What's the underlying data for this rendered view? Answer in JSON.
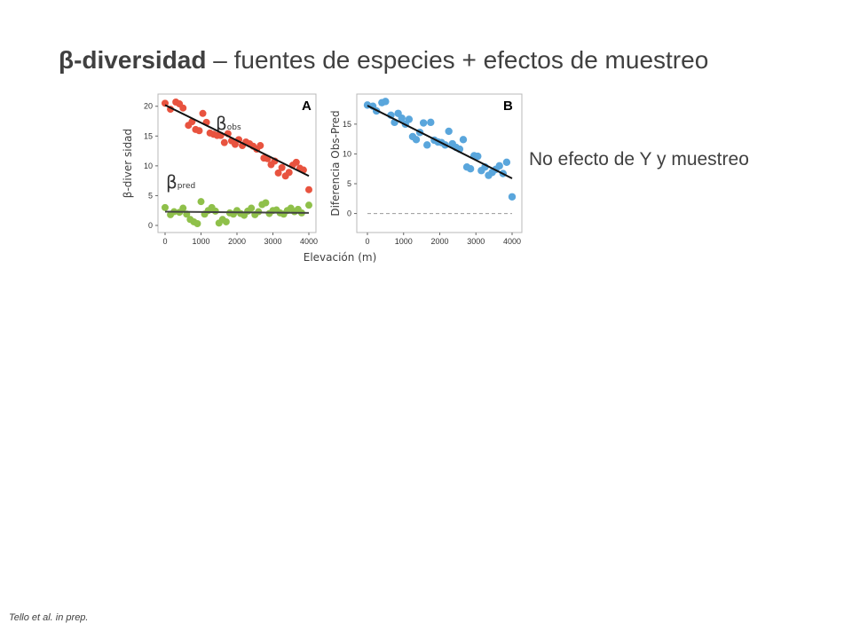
{
  "slide": {
    "title_bold": "β-diversidad",
    "title_rest": " – fuentes de especies + efectos de muestreo",
    "note": "No efecto de Y y muestreo",
    "citation": "Tello et al. in prep.",
    "shared_xlabel": "Elevación (m)"
  },
  "chart_data": [
    {
      "type": "scatter",
      "panel": "A",
      "ylabel": "β-diver sidad",
      "xlim": [
        0,
        4000
      ],
      "ylim": [
        0,
        21
      ],
      "xticks": [
        0,
        1000,
        2000,
        3000,
        4000
      ],
      "yticks": [
        0,
        5,
        10,
        15,
        20
      ],
      "grid": false,
      "series": [
        {
          "name": "β",
          "subscript": "obs",
          "color": "#e8533f",
          "x": [
            0,
            150,
            300,
            400,
            500,
            650,
            750,
            850,
            950,
            1050,
            1150,
            1250,
            1350,
            1450,
            1550,
            1650,
            1750,
            1850,
            1950,
            2050,
            2150,
            2250,
            2350,
            2450,
            2550,
            2650,
            2750,
            2850,
            2950,
            3050,
            3150,
            3250,
            3350,
            3450,
            3550,
            3650,
            3750,
            3850,
            4000
          ],
          "y": [
            20.5,
            19.5,
            20.7,
            20.4,
            19.7,
            16.8,
            17.4,
            16.1,
            15.9,
            18.8,
            17.3,
            15.5,
            15.3,
            15.1,
            15.1,
            13.9,
            15.4,
            14.2,
            13.6,
            14.4,
            13.4,
            14.0,
            13.7,
            13.3,
            12.8,
            13.4,
            11.3,
            11.2,
            10.2,
            10.8,
            8.8,
            9.7,
            8.3,
            8.9,
            10.1,
            10.6,
            9.6,
            9.3,
            6.0
          ],
          "fit": [
            20.2,
            8.3
          ]
        },
        {
          "name": "β",
          "subscript": "pred",
          "color": "#8fc04a",
          "x": [
            0,
            150,
            250,
            400,
            500,
            600,
            700,
            800,
            900,
            1000,
            1100,
            1200,
            1300,
            1400,
            1500,
            1600,
            1700,
            1800,
            1900,
            2000,
            2100,
            2200,
            2300,
            2400,
            2500,
            2600,
            2700,
            2800,
            2900,
            3000,
            3100,
            3200,
            3300,
            3400,
            3500,
            3600,
            3700,
            3800,
            4000
          ],
          "y": [
            3.0,
            1.8,
            2.3,
            2.2,
            2.9,
            1.9,
            1.0,
            0.6,
            0.3,
            4.0,
            1.9,
            2.5,
            3.0,
            2.4,
            0.4,
            1.0,
            0.6,
            2.1,
            1.9,
            2.5,
            2.0,
            1.7,
            2.4,
            2.9,
            1.8,
            2.3,
            3.5,
            3.8,
            2.0,
            2.5,
            2.6,
            2.1,
            1.9,
            2.5,
            2.9,
            2.3,
            2.7,
            2.1,
            3.4
          ],
          "fit": [
            2.3,
            2.1
          ]
        }
      ]
    },
    {
      "type": "scatter",
      "panel": "B",
      "ylabel": "Diferencia Obs-Pred",
      "xlim": [
        0,
        4000
      ],
      "ylim": [
        -2,
        19
      ],
      "xticks": [
        0,
        1000,
        2000,
        3000,
        4000
      ],
      "yticks": [
        0,
        5,
        10,
        15
      ],
      "grid": false,
      "reference_line_y": 0,
      "series": [
        {
          "color": "#5aa6dc",
          "x": [
            0,
            150,
            250,
            400,
            500,
            650,
            750,
            850,
            950,
            1050,
            1150,
            1250,
            1350,
            1450,
            1550,
            1650,
            1750,
            1850,
            1950,
            2050,
            2150,
            2250,
            2350,
            2450,
            2550,
            2650,
            2750,
            2850,
            2950,
            3050,
            3150,
            3250,
            3350,
            3450,
            3550,
            3650,
            3750,
            3850,
            4000
          ],
          "y": [
            18.2,
            18.0,
            17.2,
            18.6,
            18.8,
            16.5,
            15.3,
            16.8,
            16.0,
            15.0,
            15.8,
            12.9,
            12.4,
            13.6,
            15.2,
            11.5,
            15.3,
            12.3,
            12.0,
            11.9,
            11.5,
            13.8,
            11.7,
            11.1,
            10.8,
            12.4,
            7.8,
            7.5,
            9.7,
            9.6,
            7.2,
            7.8,
            6.4,
            6.9,
            7.4,
            8.0,
            6.7,
            8.6,
            2.8
          ],
          "fit": [
            18.1,
            5.9
          ]
        }
      ]
    }
  ]
}
